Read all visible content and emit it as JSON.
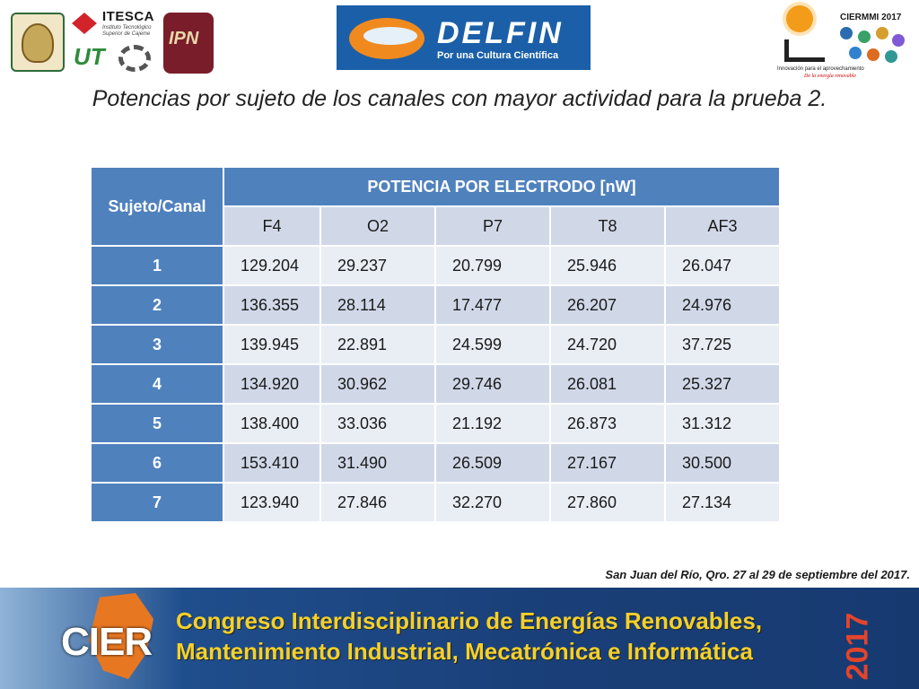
{
  "header": {
    "itesca_name": "ITESCA",
    "itesca_sub1": "Instituto Tecnológico",
    "itesca_sub2": "Superior de Cajeme",
    "ut_logo_text": "UT",
    "ipn_logo_text": "IPN",
    "delfin_name": "DELFIN",
    "delfin_tagline": "Por una Cultura Científica",
    "ciermmi_title": "CIERMMI 2017",
    "ciermmi_caption1": "Innovación para el aprovechamiento",
    "ciermmi_caption2": "De la energía renovable"
  },
  "title": "Potencias por sujeto de los canales con mayor actividad para la prueba 2.",
  "table": {
    "row_header": "Sujeto/Canal",
    "group_header": "POTENCIA POR ELECTRODO [nW]",
    "columns": [
      "F4",
      "O2",
      "P7",
      "T8",
      "AF3"
    ],
    "rows": [
      {
        "label": "1",
        "values": [
          "129.204",
          "29.237",
          "20.799",
          "25.946",
          "26.047"
        ]
      },
      {
        "label": "2",
        "values": [
          "136.355",
          "28.114",
          "17.477",
          "26.207",
          "24.976"
        ]
      },
      {
        "label": "3",
        "values": [
          "139.945",
          "22.891",
          "24.599",
          "24.720",
          "37.725"
        ]
      },
      {
        "label": "4",
        "values": [
          "134.920",
          "30.962",
          "29.746",
          "26.081",
          "25.327"
        ]
      },
      {
        "label": "5",
        "values": [
          "138.400",
          "33.036",
          "21.192",
          "26.873",
          "31.312"
        ]
      },
      {
        "label": "6",
        "values": [
          "153.410",
          "31.490",
          "26.509",
          "27.167",
          "30.500"
        ]
      },
      {
        "label": "7",
        "values": [
          "123.940",
          "27.846",
          "32.270",
          "27.860",
          "27.134"
        ]
      }
    ]
  },
  "footer": {
    "location_note": "San Juan del Río, Qro. 27 al 29 de septiembre del 2017.",
    "cier_logo": "CIER",
    "line1": "Congreso Interdisciplinario de Energías Renovables,",
    "line2": "Mantenimiento Industrial, Mecatrónica e Informática",
    "year": "2017"
  }
}
